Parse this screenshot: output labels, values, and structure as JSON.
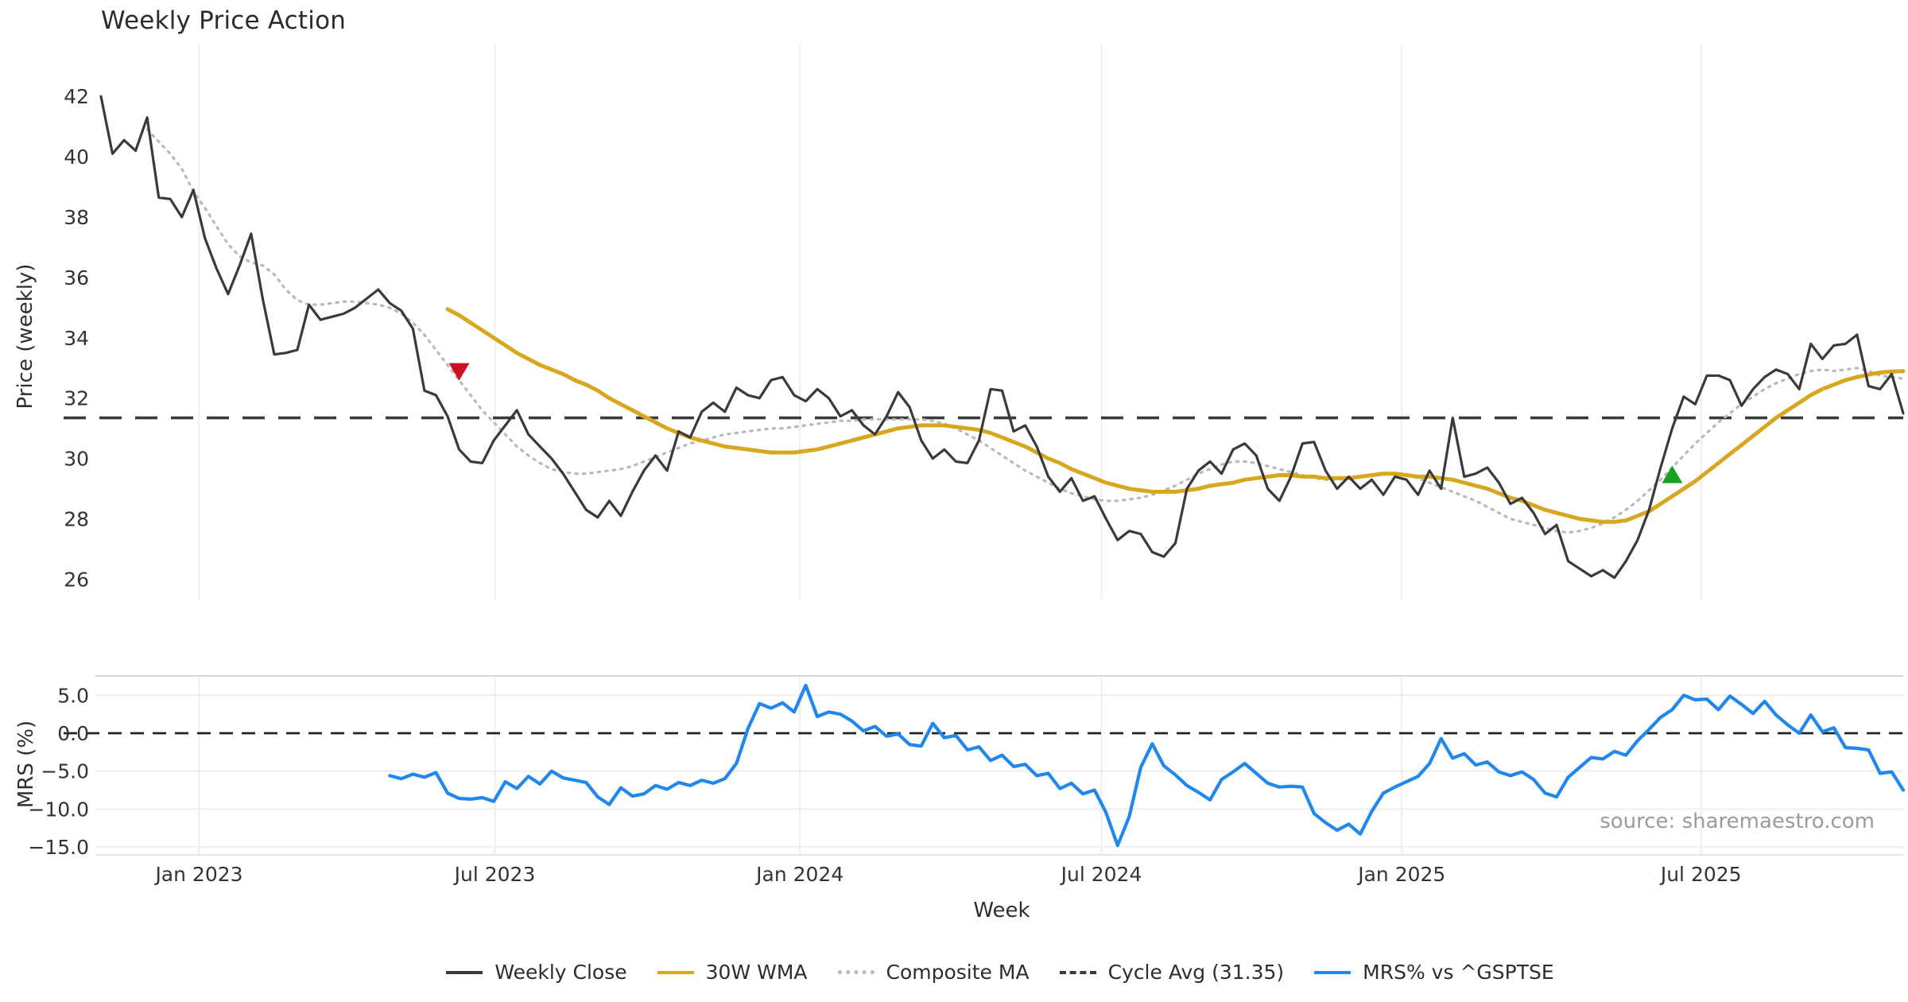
{
  "title": "Weekly Price Action",
  "xlabel": "Week",
  "source": "source: sharemaestro.com",
  "top_panel": {
    "ylabel": "Price (weekly)"
  },
  "bottom_panel": {
    "ylabel": "MRS (%)"
  },
  "colors": {
    "close": "#3a3a3a",
    "wma": "#d7a81f",
    "composite": "#b9b9b9",
    "cycle_avg": "#3a3a3a",
    "mrs": "#1f87ee",
    "sell_marker": "#cc1122",
    "buy_marker": "#17a221",
    "grid": "#ededf2",
    "panel_border": "#d5d5da",
    "tick_text": "#333333",
    "zero_line": "#222222"
  },
  "legend": [
    {
      "label": "Weekly Close",
      "style": "solid",
      "color": "#3a3a3a"
    },
    {
      "label": "30W WMA",
      "style": "solid",
      "color": "#d7a81f"
    },
    {
      "label": "Composite MA",
      "style": "dotted",
      "color": "#b9b9b9"
    },
    {
      "label": "Cycle Avg (31.35)",
      "style": "dashed",
      "color": "#3a3a3a"
    },
    {
      "label": "MRS% vs ^GSPTSE",
      "style": "solid",
      "color": "#1f87ee"
    }
  ],
  "chart_data": [
    {
      "type": "line",
      "panel": "price",
      "title": "Weekly Price Action",
      "ylabel": "Price (weekly)",
      "ylim": [
        25.3,
        43.35
      ],
      "yticks": [
        42,
        40,
        38,
        36,
        34,
        32,
        30,
        28,
        26
      ],
      "x_is_week_index": true,
      "n_weeks": 157,
      "xtick_weeks": [
        8.5,
        34.1,
        60.5,
        86.6,
        112.6,
        138.5
      ],
      "xtick_labels": [
        "Jan 2023",
        "Jul 2023",
        "Jan 2024",
        "Jul 2024",
        "Jan 2025",
        "Jul 2025"
      ],
      "grid": "vertical-only",
      "cycle_avg": 31.35,
      "markers": [
        {
          "name": "sell",
          "shape": "triangle-down",
          "week": 31,
          "value": 32.9,
          "color": "#cc1122"
        },
        {
          "name": "buy",
          "shape": "triangle-up",
          "week": 136,
          "value": 29.45,
          "color": "#17a221"
        }
      ],
      "series": [
        {
          "name": "Weekly Close",
          "style": "solid",
          "color": "#3a3a3a",
          "width": 3.2,
          "values": [
            42.0,
            40.1,
            40.55,
            40.2,
            41.3,
            38.65,
            38.6,
            38.0,
            38.9,
            37.3,
            36.3,
            35.45,
            36.4,
            37.45,
            35.3,
            33.45,
            33.5,
            33.6,
            35.1,
            34.6,
            34.7,
            34.8,
            35.0,
            35.3,
            35.6,
            35.15,
            34.9,
            34.3,
            32.25,
            32.1,
            31.4,
            30.3,
            29.9,
            29.85,
            30.6,
            31.1,
            31.6,
            30.8,
            30.4,
            30.0,
            29.5,
            28.9,
            28.3,
            28.05,
            28.6,
            28.1,
            28.9,
            29.6,
            30.1,
            29.6,
            30.9,
            30.7,
            31.55,
            31.85,
            31.55,
            32.35,
            32.1,
            32.0,
            32.6,
            32.7,
            32.1,
            31.9,
            32.3,
            32.0,
            31.4,
            31.6,
            31.1,
            30.8,
            31.4,
            32.2,
            31.7,
            30.6,
            30.0,
            30.3,
            29.9,
            29.85,
            30.6,
            32.3,
            32.25,
            30.9,
            31.1,
            30.4,
            29.4,
            28.9,
            29.35,
            28.6,
            28.75,
            28.0,
            27.3,
            27.6,
            27.5,
            26.9,
            26.75,
            27.2,
            29.0,
            29.6,
            29.9,
            29.5,
            30.3,
            30.5,
            30.1,
            29.0,
            28.6,
            29.4,
            30.5,
            30.55,
            29.6,
            29.0,
            29.4,
            29.0,
            29.3,
            28.8,
            29.4,
            29.3,
            28.8,
            29.6,
            29.0,
            31.35,
            29.4,
            29.5,
            29.7,
            29.2,
            28.5,
            28.7,
            28.2,
            27.5,
            27.8,
            26.6,
            26.35,
            26.1,
            26.3,
            26.05,
            26.6,
            27.3,
            28.3,
            29.7,
            31.0,
            32.05,
            31.8,
            32.75,
            32.75,
            32.6,
            31.75,
            32.3,
            32.7,
            32.95,
            32.8,
            32.3,
            33.8,
            33.3,
            33.75,
            33.8,
            34.1,
            32.4,
            32.3,
            32.8,
            31.5
          ]
        },
        {
          "name": "30W WMA",
          "style": "solid",
          "color": "#d7a81f",
          "width": 5,
          "values": [
            null,
            null,
            null,
            null,
            null,
            null,
            null,
            null,
            null,
            null,
            null,
            null,
            null,
            null,
            null,
            null,
            null,
            null,
            null,
            null,
            null,
            null,
            null,
            null,
            null,
            null,
            null,
            null,
            null,
            null,
            34.95,
            34.75,
            34.5,
            34.25,
            34.0,
            33.75,
            33.5,
            33.3,
            33.1,
            32.95,
            32.8,
            32.6,
            32.45,
            32.25,
            32.0,
            31.8,
            31.6,
            31.4,
            31.2,
            31.0,
            30.85,
            30.7,
            30.6,
            30.5,
            30.4,
            30.35,
            30.3,
            30.25,
            30.2,
            30.2,
            30.2,
            30.25,
            30.3,
            30.4,
            30.5,
            30.6,
            30.7,
            30.8,
            30.9,
            31.0,
            31.05,
            31.1,
            31.1,
            31.1,
            31.05,
            31.0,
            30.95,
            30.85,
            30.7,
            30.55,
            30.4,
            30.2,
            30.0,
            29.85,
            29.65,
            29.5,
            29.35,
            29.2,
            29.1,
            29.0,
            28.95,
            28.9,
            28.9,
            28.9,
            28.95,
            29.0,
            29.1,
            29.15,
            29.2,
            29.3,
            29.35,
            29.4,
            29.45,
            29.45,
            29.4,
            29.4,
            29.35,
            29.35,
            29.35,
            29.4,
            29.45,
            29.5,
            29.5,
            29.45,
            29.4,
            29.4,
            29.35,
            29.3,
            29.2,
            29.1,
            29.0,
            28.85,
            28.7,
            28.6,
            28.45,
            28.3,
            28.2,
            28.1,
            28.0,
            27.95,
            27.9,
            27.9,
            27.95,
            28.1,
            28.25,
            28.5,
            28.75,
            29.0,
            29.25,
            29.55,
            29.85,
            30.15,
            30.45,
            30.75,
            31.05,
            31.35,
            31.6,
            31.85,
            32.1,
            32.3,
            32.45,
            32.6,
            32.7,
            32.78,
            32.85,
            32.88,
            32.9
          ]
        },
        {
          "name": "Composite MA",
          "style": "dotted",
          "color": "#b9b9b9",
          "width": 3.2,
          "values": [
            null,
            null,
            null,
            null,
            40.9,
            40.5,
            40.1,
            39.6,
            38.85,
            38.3,
            37.7,
            37.1,
            36.7,
            36.5,
            36.4,
            36.1,
            35.6,
            35.25,
            35.1,
            35.1,
            35.15,
            35.2,
            35.2,
            35.15,
            35.1,
            35.0,
            34.8,
            34.5,
            34.1,
            33.6,
            33.1,
            32.6,
            32.1,
            31.6,
            31.2,
            30.8,
            30.4,
            30.1,
            29.85,
            29.65,
            29.55,
            29.5,
            29.5,
            29.55,
            29.6,
            29.65,
            29.75,
            29.9,
            30.05,
            30.2,
            30.35,
            30.5,
            30.6,
            30.7,
            30.8,
            30.85,
            30.9,
            30.95,
            31.0,
            31.0,
            31.05,
            31.1,
            31.15,
            31.2,
            31.25,
            31.25,
            31.3,
            31.3,
            31.3,
            31.3,
            31.3,
            31.3,
            31.25,
            31.15,
            31.0,
            30.8,
            30.6,
            30.35,
            30.1,
            29.85,
            29.6,
            29.4,
            29.2,
            29.0,
            28.85,
            28.75,
            28.65,
            28.6,
            28.6,
            28.65,
            28.7,
            28.8,
            28.95,
            29.1,
            29.3,
            29.5,
            29.65,
            29.8,
            29.9,
            29.9,
            29.85,
            29.75,
            29.65,
            29.55,
            29.45,
            29.35,
            29.3,
            29.3,
            29.35,
            29.4,
            29.45,
            29.5,
            29.5,
            29.45,
            29.35,
            29.2,
            29.05,
            28.9,
            28.75,
            28.6,
            28.4,
            28.2,
            28.0,
            27.9,
            27.8,
            27.7,
            27.6,
            27.55,
            27.6,
            27.7,
            27.85,
            28.05,
            28.3,
            28.6,
            28.95,
            29.3,
            29.7,
            30.1,
            30.5,
            30.85,
            31.2,
            31.5,
            31.8,
            32.05,
            32.3,
            32.5,
            32.65,
            32.8,
            32.9,
            32.95,
            32.9,
            32.95,
            33.0,
            32.9,
            32.75,
            32.7,
            32.65
          ]
        }
      ]
    },
    {
      "type": "line",
      "panel": "mrs",
      "ylabel": "MRS (%)",
      "ylim": [
        -16.05,
        7.55
      ],
      "yticks": [
        5.0,
        0.0,
        -5.0,
        -10.0,
        -15.0
      ],
      "ytick_labels": [
        "5.0",
        "0.0",
        "−5.0",
        "−10.0",
        "−15.0"
      ],
      "zero_line": 0.0,
      "grid": "both",
      "series": [
        {
          "name": "MRS% vs ^GSPTSE",
          "style": "solid",
          "color": "#1f87ee",
          "width": 4.2,
          "values": [
            null,
            null,
            null,
            null,
            null,
            null,
            null,
            null,
            null,
            null,
            null,
            null,
            null,
            null,
            null,
            null,
            null,
            null,
            null,
            null,
            null,
            null,
            null,
            null,
            null,
            -5.6,
            -6.0,
            -5.4,
            -5.8,
            -5.2,
            -7.9,
            -8.6,
            -8.7,
            -8.5,
            -9.0,
            -6.4,
            -7.3,
            -5.7,
            -6.7,
            -5.0,
            -5.9,
            -6.2,
            -6.5,
            -8.4,
            -9.4,
            -7.2,
            -8.3,
            -8.0,
            -6.9,
            -7.4,
            -6.5,
            -6.9,
            -6.2,
            -6.6,
            -6.0,
            -4.0,
            0.6,
            3.9,
            3.3,
            4.0,
            2.8,
            6.3,
            2.2,
            2.8,
            2.5,
            1.6,
            0.3,
            0.9,
            -0.4,
            -0.1,
            -1.5,
            -1.7,
            1.3,
            -0.6,
            -0.3,
            -2.2,
            -1.8,
            -3.6,
            -2.9,
            -4.4,
            -4.1,
            -5.6,
            -5.3,
            -7.3,
            -6.6,
            -8.0,
            -7.5,
            -10.5,
            -14.8,
            -11.0,
            -4.5,
            -1.4,
            -4.3,
            -5.5,
            -6.9,
            -7.8,
            -8.8,
            -6.1,
            -5.1,
            -4.0,
            -5.3,
            -6.6,
            -7.1,
            -7.0,
            -7.1,
            -10.6,
            -11.8,
            -12.8,
            -12.0,
            -13.3,
            -10.3,
            -7.9,
            -7.1,
            -6.4,
            -5.7,
            -4.0,
            -0.7,
            -3.3,
            -2.7,
            -4.2,
            -3.8,
            -5.1,
            -5.6,
            -5.1,
            -6.1,
            -7.9,
            -8.4,
            -5.8,
            -4.5,
            -3.2,
            -3.4,
            -2.4,
            -2.9,
            -1.0,
            0.5,
            2.1,
            3.1,
            5.0,
            4.4,
            4.5,
            3.1,
            4.9,
            3.8,
            2.6,
            4.2,
            2.4,
            1.1,
            0.0,
            2.4,
            0.2,
            0.7,
            -1.9,
            -2.0,
            -2.2,
            -5.3,
            -5.1,
            -7.5
          ]
        }
      ]
    }
  ]
}
